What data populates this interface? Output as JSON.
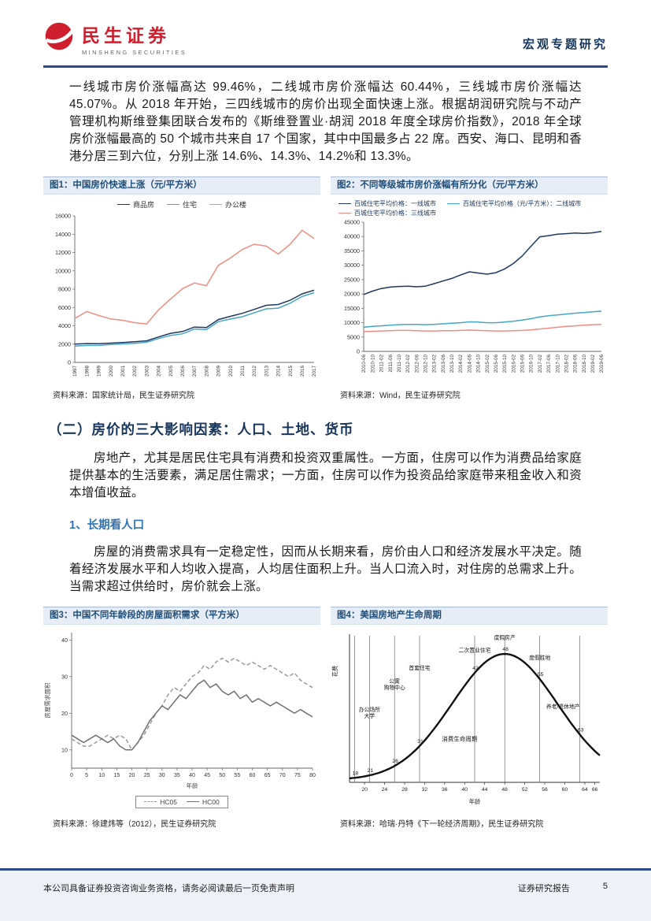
{
  "header": {
    "brand_cn": "民生证券",
    "brand_en": "MINSHENG SECURITIES",
    "doc_type": "宏观专题研究"
  },
  "intro_paragraph": "一线城市房价涨幅高达 99.46%，二线城市房价涨幅达 60.44%，三线城市房价涨幅达 45.07%。从 2018 年开始，三四线城市的房价出现全面快速上涨。根据胡润研究院与不动产管理机构斯维登集团联合发布的《斯维登置业·胡润 2018 年度全球房价指数》，2018 年全球房价涨幅最高的 50 个城市共来自 17 个国家，其中中国最多占 22 席。西安、海口、昆明和香港分居三到六位，分别上涨 14.6%、14.3%、14.2%和 13.3%。",
  "section": {
    "heading": "（二）房价的三大影响因素：人口、土地、货币",
    "para": "房地产，尤其是居民住宅具有消费和投资双重属性。一方面，住房可以作为消费品给家庭提供基本的生活要素，满足居住需求；一方面，住房可以作为投资品给家庭带来租金收入和资本增值收益。",
    "sub_heading": "1、长期看人口",
    "sub_para": "房屋的消费需求具有一定稳定性，因而从长期来看，房价由人口和经济发展水平决定。随着经济发展水平和人均收入提高，人均居住面积上升。当人口流入时，对住房的总需求上升。当需求超过供给时，房价就会上涨。"
  },
  "figures": [
    {
      "title": "图1：中国房价快速上涨（元/平方米）",
      "source": "资料来源：国家统计局，民生证券研究院"
    },
    {
      "title": "图2：不同等级城市房价涨幅有所分化（元/平方米）",
      "source": "资料来源：Wind，民生证券研究院"
    },
    {
      "title": "图3：中国不同年龄段的房屋面积需求（平方米）",
      "source": "资料来源：徐建炜等（2012），民生证券研究院"
    },
    {
      "title": "图4：美国房地产生命周期",
      "source": "资料来源：哈瑞·丹特《下一轮经济周期》，民生证券研究院"
    }
  ],
  "footer": {
    "disclaimer": "本公司具备证券投资咨询业务资格，请务必阅读最后一页免责声明",
    "report_type": "证券研究报告",
    "page_number": "5"
  },
  "colors": {
    "brand_red": "#cf1f2e",
    "rule_blue": "#2b4a8b",
    "title_blue": "#1f4e79",
    "navy_series": "#1f3864",
    "blue_series": "#45a6c6",
    "pink_series": "#f08c82"
  },
  "chart_data": [
    {
      "type": "line",
      "title": "中国房价快速上涨（元/平方米）",
      "legend": "top-center",
      "categories": [
        "1997",
        "1998",
        "1999",
        "2000",
        "2001",
        "2002",
        "2003",
        "2004",
        "2005",
        "2006",
        "2007",
        "2008",
        "2009",
        "2010",
        "2011",
        "2012",
        "2013",
        "2014",
        "2015",
        "2016",
        "2017"
      ],
      "series": [
        {
          "name": "商品房",
          "color": "#1f3864",
          "values": [
            2000,
            2060,
            2050,
            2110,
            2170,
            2250,
            2360,
            2780,
            3170,
            3370,
            3860,
            3800,
            4680,
            5030,
            5360,
            5790,
            6240,
            6320,
            6790,
            7480,
            7890
          ]
        },
        {
          "name": "住宅",
          "color": "#45a6c6",
          "values": [
            1790,
            1850,
            1860,
            1950,
            2020,
            2090,
            2200,
            2610,
            2940,
            3120,
            3650,
            3580,
            4460,
            4730,
            4990,
            5430,
            5850,
            5930,
            6470,
            7200,
            7610
          ]
        },
        {
          "name": "办公楼",
          "color": "#f08c82",
          "values": [
            4800,
            5560,
            5130,
            4750,
            4590,
            4340,
            4200,
            5740,
            6920,
            8050,
            8670,
            8380,
            10600,
            11400,
            12330,
            12900,
            12700,
            11830,
            12910,
            14430,
            13530
          ]
        }
      ],
      "ylim": [
        0,
        16000
      ],
      "yticks": [
        0,
        2000,
        4000,
        6000,
        8000,
        10000,
        12000,
        14000,
        16000
      ]
    },
    {
      "type": "line",
      "title": "不同等级城市房价涨幅有所分化（元/平方米）",
      "legend": "top-wrap",
      "categories": [
        "2010-06",
        "2010-10",
        "2011-02",
        "2011-06",
        "2011-10",
        "2012-02",
        "2012-06",
        "2012-10",
        "2013-02",
        "2013-06",
        "2013-10",
        "2014-02",
        "2014-06",
        "2014-10",
        "2015-02",
        "2015-06",
        "2015-10",
        "2016-02",
        "2016-06",
        "2016-10",
        "2017-02",
        "2017-06",
        "2017-10",
        "2018-02",
        "2018-06",
        "2018-10",
        "2019-02",
        "2019-06"
      ],
      "series": [
        {
          "name": "百城住宅平均价格：一线城市",
          "color": "#1f3864",
          "values": [
            19800,
            21000,
            21900,
            22400,
            22600,
            22700,
            22500,
            22700,
            23600,
            24500,
            25400,
            26600,
            27700,
            27300,
            26900,
            27400,
            28700,
            30600,
            33200,
            36600,
            39900,
            40300,
            40800,
            41000,
            41200,
            41100,
            41300,
            41800
          ]
        },
        {
          "name": "百城住宅平均价格（元/平方米）：二线城市",
          "color": "#45a6c6",
          "values": [
            8400,
            8700,
            8900,
            9100,
            9300,
            9400,
            9400,
            9300,
            9400,
            9600,
            9800,
            10000,
            10300,
            10200,
            10000,
            10000,
            10200,
            10500,
            10900,
            11400,
            12000,
            12400,
            12700,
            13000,
            13300,
            13500,
            13800,
            14000
          ]
        },
        {
          "name": "百城住宅平均价格：三线城市",
          "color": "#f08c82",
          "values": [
            6900,
            7000,
            7100,
            7200,
            7300,
            7300,
            7200,
            7100,
            7100,
            7200,
            7200,
            7300,
            7400,
            7300,
            7200,
            7100,
            7100,
            7200,
            7300,
            7500,
            7800,
            8100,
            8400,
            8700,
            8900,
            9100,
            9300,
            9400
          ]
        }
      ],
      "ylim": [
        0,
        45000
      ],
      "yticks": [
        0,
        5000,
        10000,
        15000,
        20000,
        25000,
        30000,
        35000,
        40000,
        45000
      ]
    },
    {
      "type": "line",
      "title": "中国不同年龄段的房屋面积需求（平方米）",
      "legend": "box-bottom",
      "x": [
        0,
        2,
        4,
        6,
        8,
        10,
        12,
        14,
        16,
        18,
        20,
        22,
        24,
        26,
        28,
        30,
        32,
        34,
        36,
        38,
        40,
        42,
        44,
        46,
        48,
        50,
        52,
        54,
        56,
        58,
        60,
        62,
        64,
        66,
        68,
        70,
        72,
        74,
        76,
        78,
        80
      ],
      "xticks": [
        0,
        5,
        10,
        15,
        20,
        25,
        30,
        35,
        40,
        45,
        50,
        55,
        60,
        65,
        70,
        75,
        80
      ],
      "series": [
        {
          "name": "HC05",
          "color": "#9a9a9a",
          "dash": "5 3",
          "values": [
            13,
            12,
            11,
            11,
            12,
            13,
            14,
            13,
            14,
            13,
            10,
            12,
            14,
            17,
            20,
            22,
            25,
            27,
            26,
            28,
            30,
            31,
            33,
            32,
            34,
            35,
            34,
            35,
            34,
            33,
            34,
            33,
            32,
            33,
            32,
            31,
            30,
            31,
            29,
            28,
            27
          ]
        },
        {
          "name": "HC00",
          "color": "#707070",
          "values": [
            14,
            13,
            12,
            13,
            14,
            13,
            12,
            13,
            11,
            10,
            10,
            12,
            15,
            18,
            20,
            22,
            21,
            23,
            25,
            24,
            26,
            28,
            29,
            27,
            28,
            26,
            25,
            26,
            24,
            25,
            23,
            24,
            23,
            22,
            23,
            22,
            21,
            20,
            21,
            20,
            19
          ]
        }
      ],
      "ylim": [
        5,
        42
      ],
      "yticks": [
        10,
        20,
        30,
        40
      ],
      "ylabel": "房屋需求面积",
      "xlabel": "年龄"
    },
    {
      "type": "lifecycle",
      "title": "美国房地产生命周期",
      "xlabel": "年龄",
      "ylabel": "花费",
      "age_range": [
        17,
        67
      ],
      "peak_age": 48,
      "sigma": 10.5,
      "xticks": [
        20,
        24,
        28,
        32,
        36,
        40,
        44,
        48,
        52,
        56,
        60,
        64,
        66
      ],
      "curve_label": "消费生命周期",
      "curve_label_age": 39,
      "curve_label_level": 0.72,
      "annotations": [
        {
          "age": 18,
          "num": "18"
        },
        {
          "age": 21,
          "num": "21",
          "lines": [
            "办公场所",
            "大学"
          ],
          "level": 0.52
        },
        {
          "age": 26,
          "num": "26",
          "lines": [
            "公寓",
            "购物中心"
          ],
          "level": 0.33
        },
        {
          "age": 31,
          "num": "31",
          "lines": [
            "首套住宅"
          ],
          "level": 0.24
        },
        {
          "age": 42,
          "num": "42",
          "lines": [
            "二次置业住宅"
          ],
          "level": 0.12
        },
        {
          "age": 48,
          "num": "48",
          "lines": [
            "度假房产"
          ],
          "level": 0.035
        },
        {
          "age": 55,
          "num": "55",
          "lines": [
            "度假胜地"
          ],
          "level": 0.17
        },
        {
          "age": 63,
          "num": "63",
          "lines": [
            "养老/退休地产"
          ],
          "level": 0.5
        }
      ]
    }
  ]
}
